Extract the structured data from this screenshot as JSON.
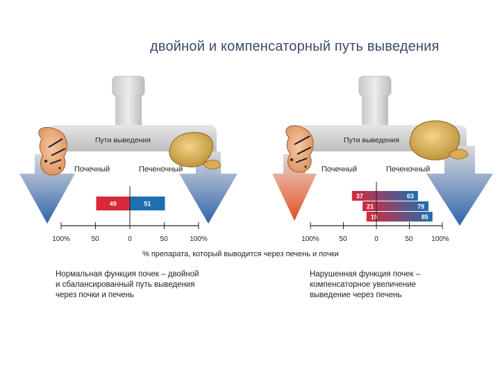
{
  "title": "двойной и компенсаторный путь выведения",
  "panels": [
    {
      "pathway_label": "Пути выведения",
      "renal_label": "Почечный",
      "hepatic_label": "Печеночный",
      "bars": [
        {
          "renal": 49,
          "hepatic": 51
        }
      ],
      "ticks": [
        "100%",
        "50",
        "0",
        "50",
        "100%"
      ],
      "caption": [
        "Нормальная функция почек – двойной",
        "и сбалансированный путь выведения",
        "через почки и печень"
      ]
    },
    {
      "pathway_label": "Пути выведения",
      "renal_label": "Почечный",
      "hepatic_label": "Печеночный",
      "bars": [
        {
          "renal": 37,
          "hepatic": 63
        },
        {
          "renal": 21,
          "hepatic": 79
        },
        {
          "renal": 15,
          "hepatic": 85
        }
      ],
      "ticks": [
        "100%",
        "50",
        "0",
        "50",
        "100%"
      ],
      "caption": [
        "Нарушенная функция почек –",
        "компенсаторное увеличение",
        "выведение через печень"
      ]
    }
  ],
  "axis_caption": "% препарата, который выводится через печень и почки",
  "colors": {
    "renal": "#d8283a",
    "hepatic": "#1e6fb0",
    "pipe": "#c9c9c9",
    "arrow_blue": "#3a6fb0",
    "arrow_red": "#e0502a"
  }
}
